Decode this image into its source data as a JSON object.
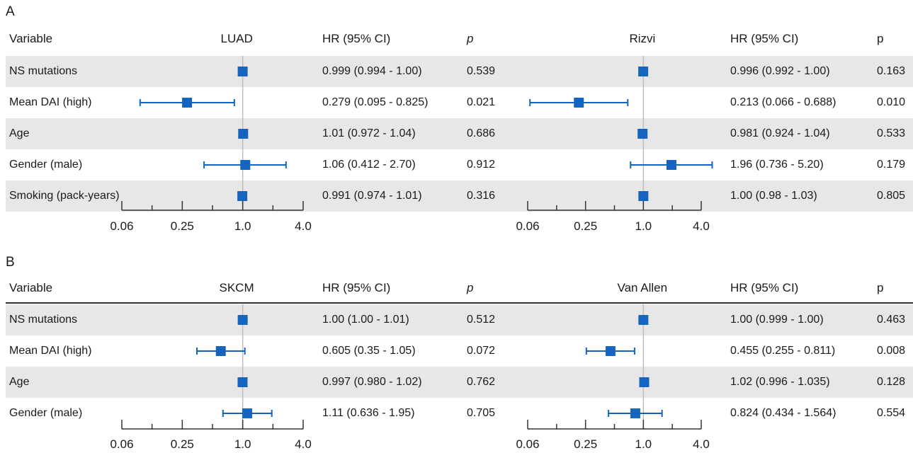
{
  "chart_data": [
    {
      "type": "forest",
      "panel": "A",
      "study": "LUAD",
      "headers": {
        "variable": "Variable",
        "hr": "HR (95% CI)",
        "p": "p"
      },
      "x_scale": "log",
      "x_ticks": [
        "0.06",
        "0.25",
        "1.0",
        "4.0"
      ],
      "rows": [
        {
          "variable": "NS mutations",
          "hr": 0.999,
          "lo": 0.994,
          "hi": 1.0,
          "hr_text": "0.999 (0.994 - 1.00)",
          "p": "0.539"
        },
        {
          "variable": "Mean DAI (high)",
          "hr": 0.279,
          "lo": 0.095,
          "hi": 0.825,
          "hr_text": "0.279 (0.095 - 0.825)",
          "p": "0.021"
        },
        {
          "variable": "Age",
          "hr": 1.01,
          "lo": 0.972,
          "hi": 1.04,
          "hr_text": "1.01   (0.972 - 1.04)",
          "p": "0.686"
        },
        {
          "variable": "Gender (male)",
          "hr": 1.06,
          "lo": 0.412,
          "hi": 2.7,
          "hr_text": "1.06   (0.412 - 2.70)",
          "p": "0.912"
        },
        {
          "variable": "Smoking (pack-years)",
          "hr": 0.991,
          "lo": 0.974,
          "hi": 1.01,
          "hr_text": "0.991 (0.974 - 1.01)",
          "p": "0.316"
        }
      ]
    },
    {
      "type": "forest",
      "panel": "A",
      "study": "Rizvi",
      "headers": {
        "hr": "HR (95% CI)",
        "p": "p"
      },
      "x_scale": "log",
      "x_ticks": [
        "0.06",
        "0.25",
        "1.0",
        "4.0"
      ],
      "rows": [
        {
          "hr": 0.996,
          "lo": 0.992,
          "hi": 1.0,
          "hr_text": "0.996 (0.992 - 1.00)",
          "p": "0.163"
        },
        {
          "hr": 0.213,
          "lo": 0.066,
          "hi": 0.688,
          "hr_text": "0.213 (0.066 - 0.688)",
          "p": "0.010"
        },
        {
          "hr": 0.981,
          "lo": 0.924,
          "hi": 1.04,
          "hr_text": "0.981 (0.924 - 1.04)",
          "p": "0.533"
        },
        {
          "hr": 1.96,
          "lo": 0.736,
          "hi": 5.2,
          "hr_text": "1.96   (0.736 - 5.20)",
          "p": "0.179"
        },
        {
          "hr": 1.0,
          "lo": 0.98,
          "hi": 1.03,
          "hr_text": "1.00   (0.98 - 1.03)",
          "p": "0.805"
        }
      ]
    },
    {
      "type": "forest",
      "panel": "B",
      "study": "SKCM",
      "headers": {
        "variable": "Variable",
        "hr": "HR (95% CI)",
        "p": "p"
      },
      "x_scale": "log",
      "x_ticks": [
        "0.06",
        "0.25",
        "1.0",
        "4.0"
      ],
      "rows": [
        {
          "variable": "NS mutations",
          "hr": 1.0,
          "lo": 1.0,
          "hi": 1.01,
          "hr_text": "1.00   (1.00 - 1.01)",
          "p": "0.512"
        },
        {
          "variable": "Mean DAI (high)",
          "hr": 0.605,
          "lo": 0.35,
          "hi": 1.05,
          "hr_text": "0.605 (0.35 - 1.05)",
          "p": "0.072"
        },
        {
          "variable": "Age",
          "hr": 0.997,
          "lo": 0.98,
          "hi": 1.02,
          "hr_text": "0.997 (0.980 - 1.02)",
          "p": "0.762"
        },
        {
          "variable": "Gender (male)",
          "hr": 1.11,
          "lo": 0.636,
          "hi": 1.95,
          "hr_text": "1.11   (0.636 - 1.95)",
          "p": "0.705"
        }
      ]
    },
    {
      "type": "forest",
      "panel": "B",
      "study": "Van Allen",
      "headers": {
        "hr": "HR (95% CI)",
        "p": "p"
      },
      "x_scale": "log",
      "x_ticks": [
        "0.06",
        "0.25",
        "1.0",
        "4.0"
      ],
      "rows": [
        {
          "hr": 1.0,
          "lo": 0.999,
          "hi": 1.0,
          "hr_text": "1.00   (0.999 - 1.00)",
          "p": "0.463"
        },
        {
          "hr": 0.455,
          "lo": 0.255,
          "hi": 0.811,
          "hr_text": "0.455 (0.255 - 0.811)",
          "p": "0.008"
        },
        {
          "hr": 1.02,
          "lo": 0.996,
          "hi": 1.035,
          "hr_text": "1.02   (0.996 - 1.035)",
          "p": "0.128"
        },
        {
          "hr": 0.824,
          "lo": 0.434,
          "hi": 1.564,
          "hr_text": "0.824 (0.434 - 1.564)",
          "p": "0.554"
        }
      ]
    }
  ],
  "colors": {
    "marker": "#1565c0",
    "ref_line": "#bdbdbd",
    "band": "#e7e7e7",
    "axis": "#333333"
  }
}
